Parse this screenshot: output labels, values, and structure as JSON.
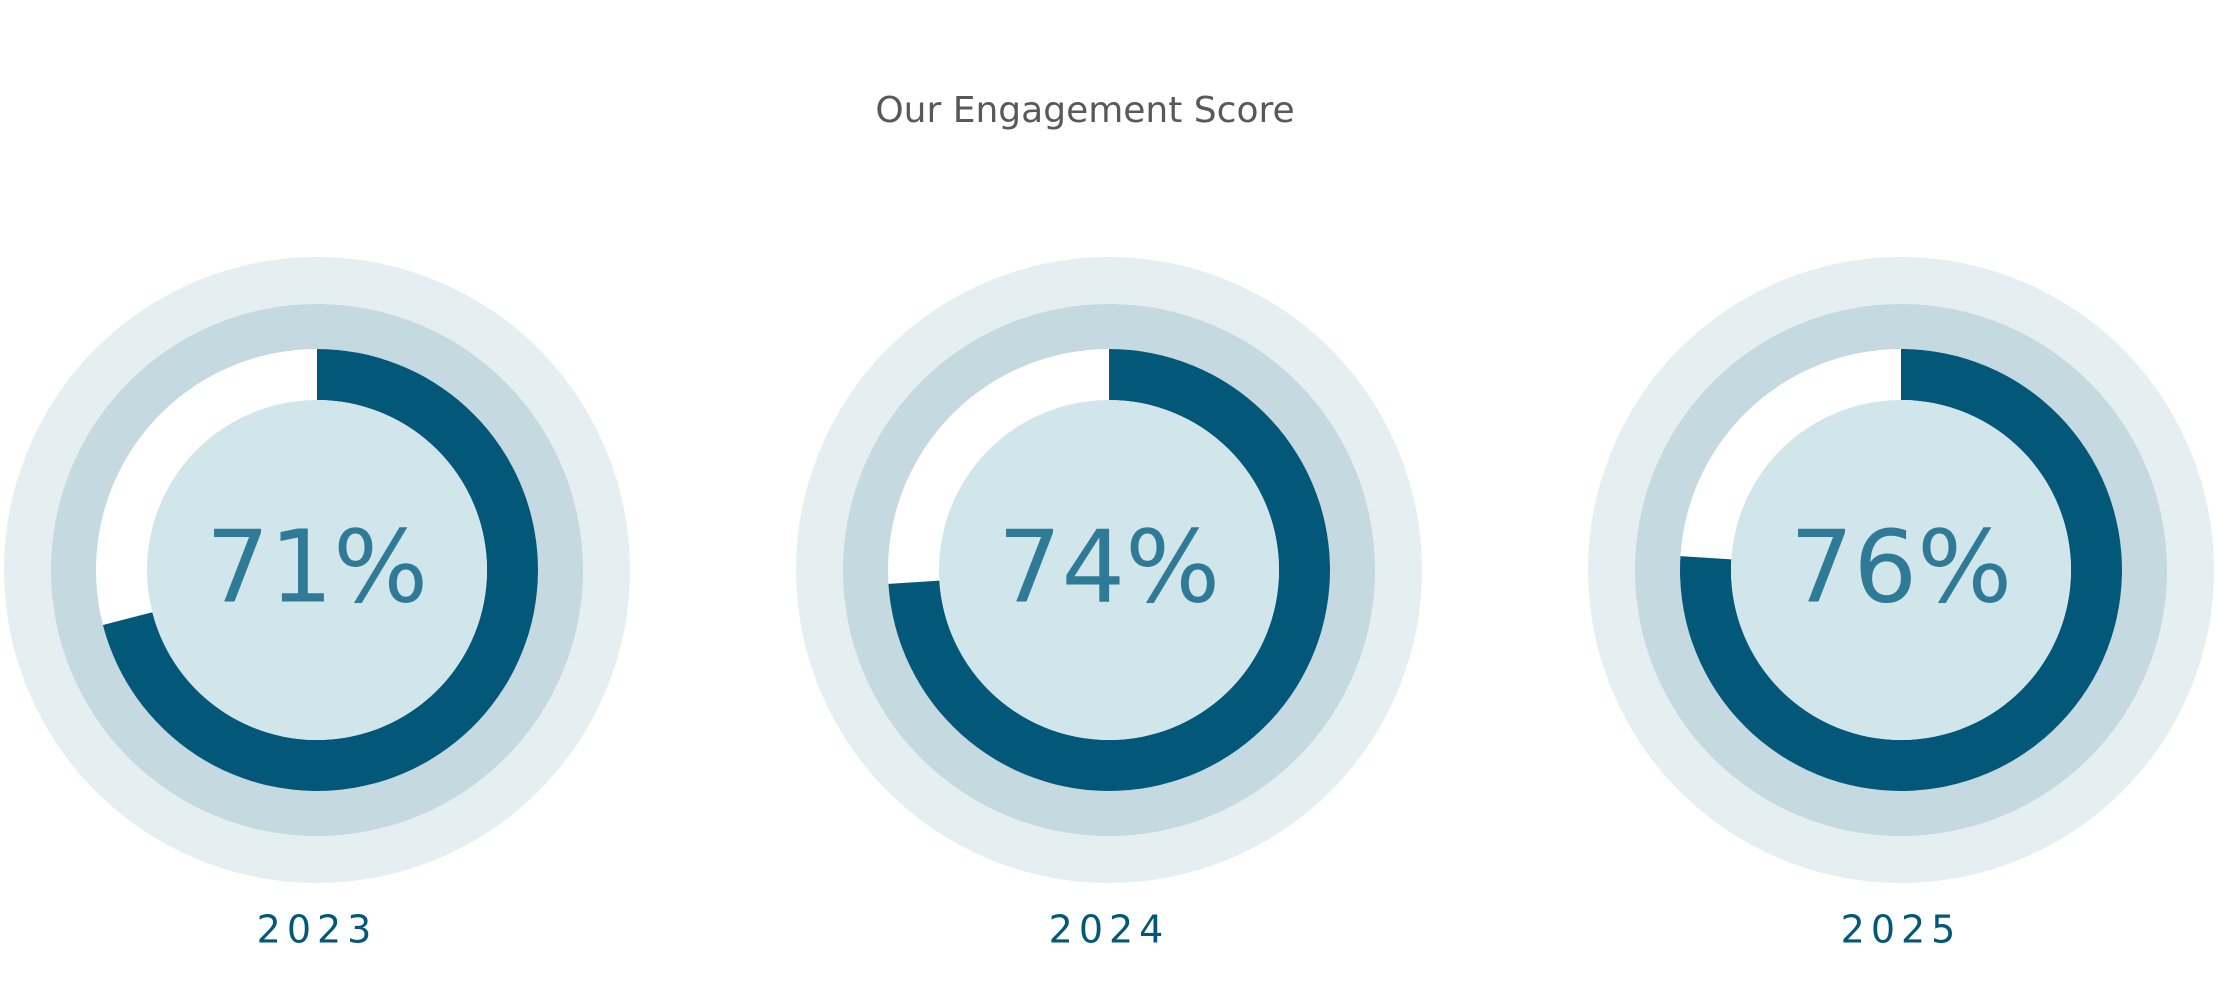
{
  "chart_data": {
    "type": "gauge",
    "title": "Our Engagement Score",
    "categories": [
      "2023",
      "2024",
      "2025"
    ],
    "values": [
      71,
      74,
      76
    ],
    "value_labels": [
      "71%",
      "74%",
      "76%"
    ],
    "ylim": [
      0,
      100
    ],
    "color": "#03587a"
  }
}
